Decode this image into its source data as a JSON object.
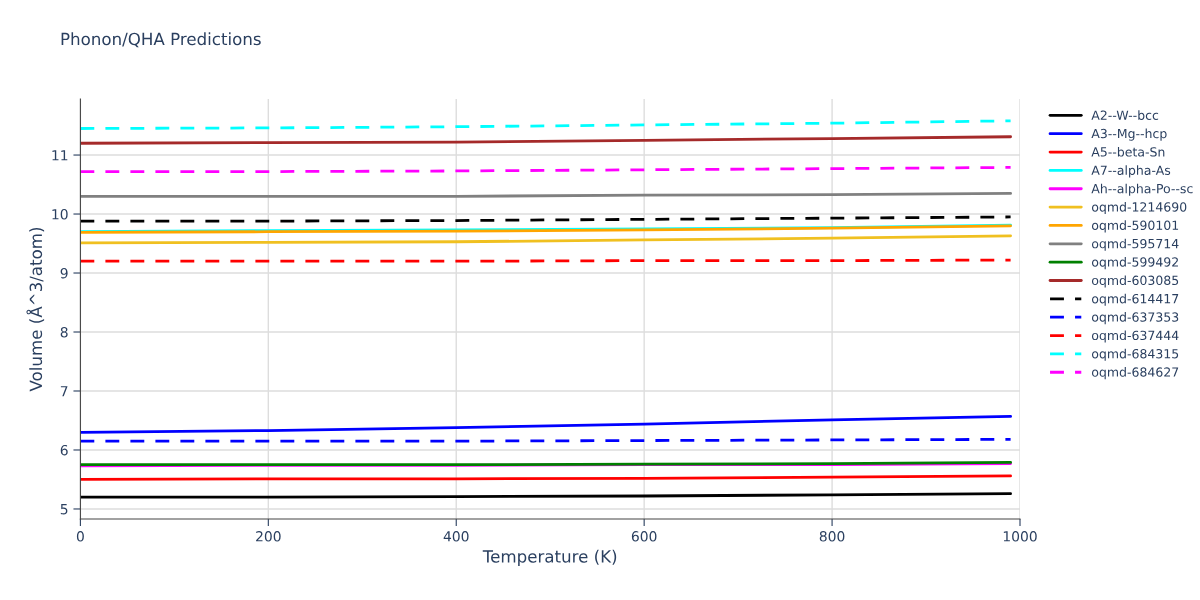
{
  "chart_data": {
    "type": "line",
    "title": "Phonon/QHA Predictions",
    "xlabel": "Temperature (K)",
    "ylabel": "Volume (Å^3/atom)",
    "x": [
      0,
      200,
      400,
      600,
      800,
      990
    ],
    "xlim": [
      0,
      1000
    ],
    "xticks": [
      0,
      200,
      400,
      600,
      800,
      1000
    ],
    "ylim": [
      4.83,
      11.95
    ],
    "yticks": [
      5,
      6,
      7,
      8,
      9,
      10,
      11
    ],
    "grid": true,
    "legend": "top right",
    "series": [
      {
        "name": "A2--W--bcc",
        "color": "#000000",
        "line_style": "solid",
        "values": [
          5.2,
          5.2,
          5.21,
          5.22,
          5.24,
          5.26
        ]
      },
      {
        "name": "A3--Mg--hcp",
        "color": "#0000ff",
        "line_style": "solid",
        "values": [
          6.3,
          6.33,
          6.38,
          6.44,
          6.51,
          6.57
        ]
      },
      {
        "name": "A5--beta-Sn",
        "color": "#ff0000",
        "line_style": "solid",
        "values": [
          5.5,
          5.51,
          5.51,
          5.52,
          5.54,
          5.56
        ]
      },
      {
        "name": "A7--alpha-As",
        "color": "#00ffff",
        "line_style": "solid",
        "values": [
          9.7,
          9.72,
          9.73,
          9.75,
          9.77,
          9.81
        ]
      },
      {
        "name": "Ah--alpha-Po--sc",
        "color": "#ff00ff",
        "line_style": "solid",
        "values": [
          5.73,
          5.74,
          5.74,
          5.75,
          5.75,
          5.77
        ]
      },
      {
        "name": "oqmd-1214690",
        "color": "#f0c020",
        "line_style": "solid",
        "values": [
          9.51,
          9.52,
          9.53,
          9.56,
          9.59,
          9.63
        ]
      },
      {
        "name": "oqmd-590101",
        "color": "#ffa500",
        "line_style": "solid",
        "values": [
          9.69,
          9.7,
          9.71,
          9.73,
          9.76,
          9.8
        ]
      },
      {
        "name": "oqmd-595714",
        "color": "#808080",
        "line_style": "solid",
        "values": [
          10.3,
          10.3,
          10.3,
          10.32,
          10.33,
          10.35
        ]
      },
      {
        "name": "oqmd-599492",
        "color": "#008000",
        "line_style": "solid",
        "values": [
          5.75,
          5.75,
          5.75,
          5.76,
          5.77,
          5.79
        ]
      },
      {
        "name": "oqmd-603085",
        "color": "#a52a2a",
        "line_style": "solid",
        "values": [
          11.2,
          11.21,
          11.22,
          11.25,
          11.28,
          11.31
        ]
      },
      {
        "name": "oqmd-614417",
        "color": "#000000",
        "line_style": "dashed",
        "values": [
          9.88,
          9.88,
          9.89,
          9.91,
          9.93,
          9.95
        ]
      },
      {
        "name": "oqmd-637353",
        "color": "#0000ff",
        "line_style": "dashed",
        "values": [
          6.15,
          6.15,
          6.15,
          6.16,
          6.17,
          6.18
        ]
      },
      {
        "name": "oqmd-637444",
        "color": "#ff0000",
        "line_style": "dashed",
        "values": [
          9.2,
          9.2,
          9.2,
          9.21,
          9.21,
          9.22
        ]
      },
      {
        "name": "oqmd-684315",
        "color": "#00ffff",
        "line_style": "dashed",
        "values": [
          11.45,
          11.46,
          11.48,
          11.51,
          11.54,
          11.58
        ]
      },
      {
        "name": "oqmd-684627",
        "color": "#ff00ff",
        "line_style": "dashed",
        "values": [
          10.72,
          10.72,
          10.73,
          10.75,
          10.77,
          10.79
        ]
      }
    ]
  }
}
